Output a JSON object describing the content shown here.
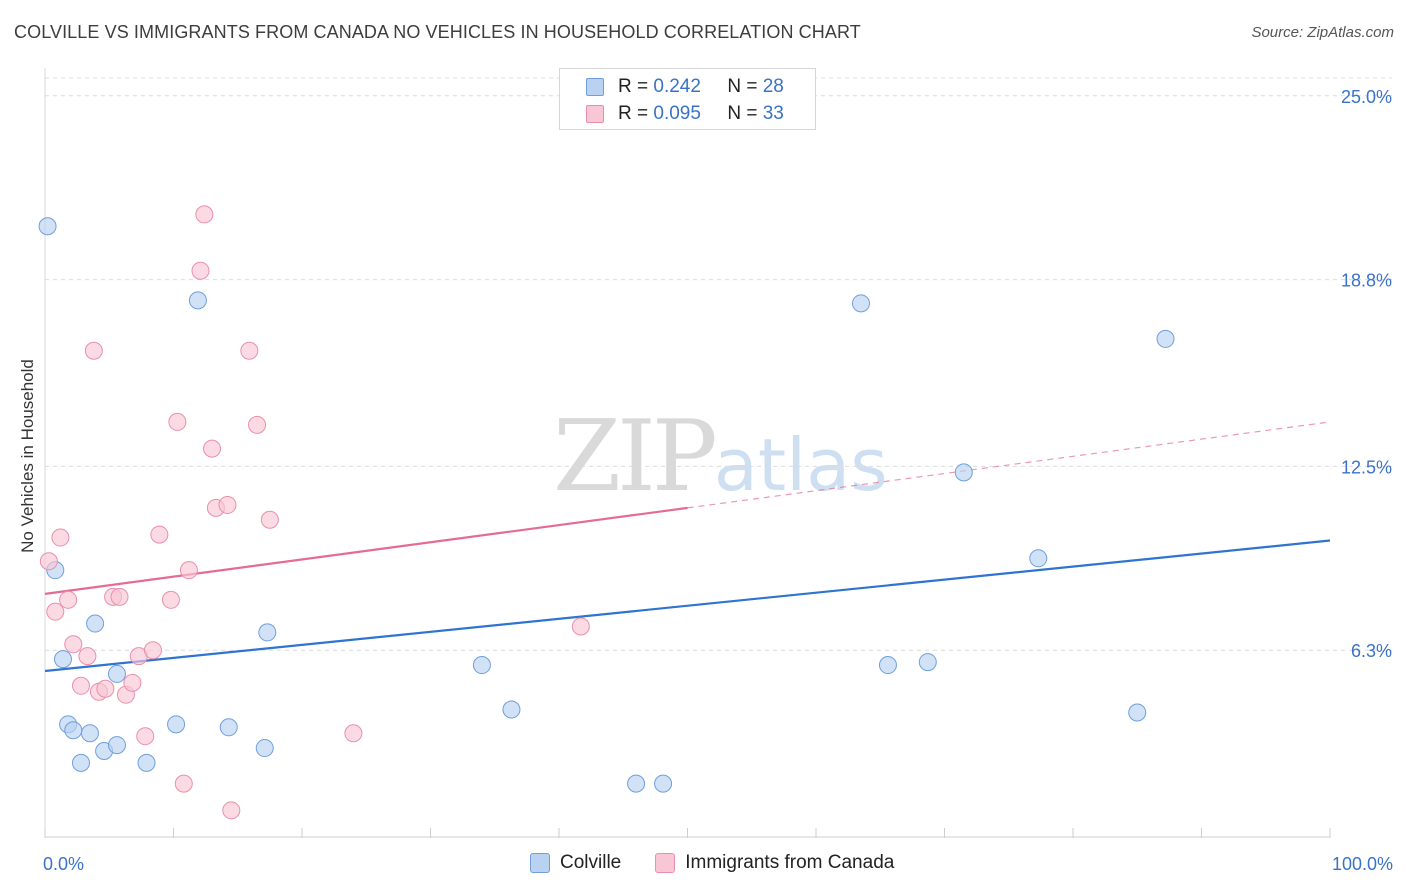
{
  "title": "COLVILLE VS IMMIGRANTS FROM CANADA NO VEHICLES IN HOUSEHOLD CORRELATION CHART",
  "source": "Source: ZipAtlas.com",
  "watermark": {
    "zip": "ZIP",
    "atlas": "atlas"
  },
  "colors": {
    "blue_fill": "#b9d2f2",
    "blue_stroke": "#6f9fdc",
    "blue_line": "#2f74d0",
    "pink_fill": "#f9c6d6",
    "pink_stroke": "#e98fae",
    "pink_line": "#e46b95",
    "tick_label": "#3a72c9",
    "grid": "#dcdcdc"
  },
  "legend_top": [
    {
      "r_label": "R =",
      "r_value": "0.242",
      "n_label": "N =",
      "n_value": "28"
    },
    {
      "r_label": "R =",
      "r_value": "0.095",
      "n_label": "N =",
      "n_value": "33"
    }
  ],
  "chart_data": {
    "type": "scatter",
    "title": "COLVILLE VS IMMIGRANTS FROM CANADA NO VEHICLES IN HOUSEHOLD CORRELATION CHART",
    "xlabel": "",
    "ylabel": "No Vehicles in Household",
    "xlim": [
      0,
      100
    ],
    "ylim": [
      0,
      25.6
    ],
    "x_tick_labels": [
      "0.0%",
      "100.0%"
    ],
    "y_ticks": [
      6.3,
      12.5,
      18.8,
      25.0
    ],
    "y_tick_labels": [
      "6.3%",
      "12.5%",
      "18.8%",
      "25.0%"
    ],
    "grid": true,
    "legend_position": "bottom-center",
    "series": [
      {
        "name": "Colville",
        "r": 0.242,
        "n": 28,
        "trend": {
          "x0": 0,
          "y0": 5.6,
          "x1": 100,
          "y1": 10.0,
          "solid_to": 100
        },
        "points": [
          [
            0.2,
            20.6
          ],
          [
            0.8,
            9.0
          ],
          [
            1.4,
            6.0
          ],
          [
            1.8,
            3.8
          ],
          [
            2.2,
            3.6
          ],
          [
            2.8,
            2.5
          ],
          [
            3.5,
            3.5
          ],
          [
            3.9,
            7.2
          ],
          [
            4.6,
            2.9
          ],
          [
            5.6,
            3.1
          ],
          [
            5.6,
            5.5
          ],
          [
            7.9,
            2.5
          ],
          [
            10.2,
            3.8
          ],
          [
            11.9,
            18.1
          ],
          [
            14.3,
            3.7
          ],
          [
            17.3,
            6.9
          ],
          [
            17.1,
            3.0
          ],
          [
            34.0,
            5.8
          ],
          [
            36.3,
            4.3
          ],
          [
            46.0,
            1.8
          ],
          [
            48.1,
            1.8
          ],
          [
            63.5,
            18.0
          ],
          [
            65.6,
            5.8
          ],
          [
            68.7,
            5.9
          ],
          [
            71.5,
            12.3
          ],
          [
            77.3,
            9.4
          ],
          [
            85.0,
            4.2
          ],
          [
            87.2,
            16.8
          ]
        ]
      },
      {
        "name": "Immigrants from Canada",
        "r": 0.095,
        "n": 33,
        "trend": {
          "x0": 0,
          "y0": 8.2,
          "x1": 100,
          "y1": 14.0,
          "solid_to": 50
        },
        "points": [
          [
            0.3,
            9.3
          ],
          [
            0.8,
            7.6
          ],
          [
            1.2,
            10.1
          ],
          [
            1.8,
            8.0
          ],
          [
            2.2,
            6.5
          ],
          [
            2.8,
            5.1
          ],
          [
            3.3,
            6.1
          ],
          [
            3.8,
            16.4
          ],
          [
            4.2,
            4.9
          ],
          [
            4.7,
            5.0
          ],
          [
            5.3,
            8.1
          ],
          [
            5.8,
            8.1
          ],
          [
            6.3,
            4.8
          ],
          [
            6.8,
            5.2
          ],
          [
            7.3,
            6.1
          ],
          [
            7.8,
            3.4
          ],
          [
            8.4,
            6.3
          ],
          [
            8.9,
            10.2
          ],
          [
            9.8,
            8.0
          ],
          [
            10.3,
            14.0
          ],
          [
            10.8,
            1.8
          ],
          [
            11.2,
            9.0
          ],
          [
            12.1,
            19.1
          ],
          [
            12.4,
            21.0
          ],
          [
            13.0,
            13.1
          ],
          [
            13.3,
            11.1
          ],
          [
            14.2,
            11.2
          ],
          [
            14.5,
            0.9
          ],
          [
            15.9,
            16.4
          ],
          [
            16.5,
            13.9
          ],
          [
            17.5,
            10.7
          ],
          [
            24.0,
            3.5
          ],
          [
            41.7,
            7.1
          ]
        ]
      }
    ]
  },
  "bottom_legend": [
    {
      "label": "Colville"
    },
    {
      "label": "Immigrants from Canada"
    }
  ]
}
